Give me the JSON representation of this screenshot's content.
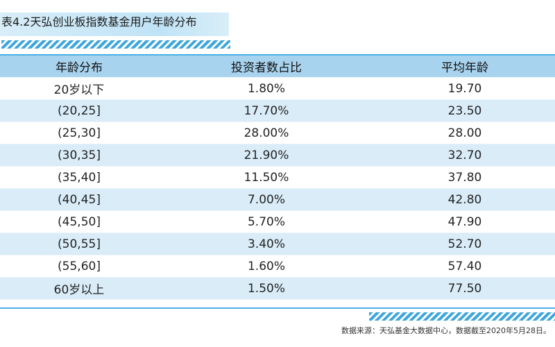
{
  "title": "表4.2天弘创业板指数基金用户年龄分布",
  "table": {
    "headers": [
      "年龄分布",
      "投资者数占比",
      "平均年龄"
    ],
    "rows": [
      [
        "20岁以下",
        "1.80%",
        "19.70"
      ],
      [
        "(20,25]",
        "17.70%",
        "23.50"
      ],
      [
        "(25,30]",
        "28.00%",
        "28.00"
      ],
      [
        "(30,35]",
        "21.90%",
        "32.70"
      ],
      [
        "(35,40]",
        "11.50%",
        "37.80"
      ],
      [
        "(40,45]",
        "7.00%",
        "42.80"
      ],
      [
        "(45,50]",
        "5.70%",
        "47.90"
      ],
      [
        "(50,55]",
        "3.40%",
        "52.70"
      ],
      [
        "(55,60]",
        "1.60%",
        "57.40"
      ],
      [
        "60岁以上",
        "1.50%",
        "77.50"
      ]
    ]
  },
  "source": "数据来源：天弘基金大数据中心，数据截至2020年5月28日。",
  "colors": {
    "header_bg": "#a8d3ee",
    "stripe_row_bg": "#d9ecf8",
    "accent": "#3ea6dc"
  }
}
